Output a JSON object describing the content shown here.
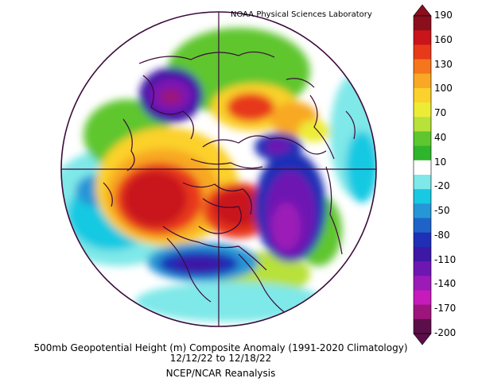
{
  "header": {
    "lab": "NOAA Physical Sciences Laboratory"
  },
  "caption": {
    "title": "500mb Geopotential Height (m) Composite Anomaly (1991-2020 Climatology)",
    "dates": "12/12/22  to 12/18/22",
    "source": "NCEP/NCAR Reanalysis"
  },
  "colorbar": {
    "labels": [
      "190",
      "160",
      "130",
      "100",
      "70",
      "40",
      "10",
      "-20",
      "-50",
      "-80",
      "-110",
      "-140",
      "-170",
      "-200"
    ],
    "colors": [
      "#8b0e1c",
      "#c8141a",
      "#e8391a",
      "#f5761c",
      "#f8a824",
      "#fbd12c",
      "#ecec36",
      "#b8e13a",
      "#5ec62f",
      "#2fb52b",
      "#ffffff",
      "#7fe8e8",
      "#18c9e2",
      "#2596d6",
      "#1f63c9",
      "#1f2fb6",
      "#3d17a6",
      "#6e16b2",
      "#9c1ab7",
      "#c61bba",
      "#9c157a",
      "#5c0e4a"
    ]
  },
  "colors": {
    "strong_positive": "#b5141b",
    "positive": "#f07a1e",
    "weak_positive": "#f6d12e",
    "near_zero": "#4fc434",
    "weak_negative": "#20c2de",
    "negative": "#2a4fc9",
    "strong_negative": "#7a17b3",
    "border": "#3a0a3a"
  }
}
